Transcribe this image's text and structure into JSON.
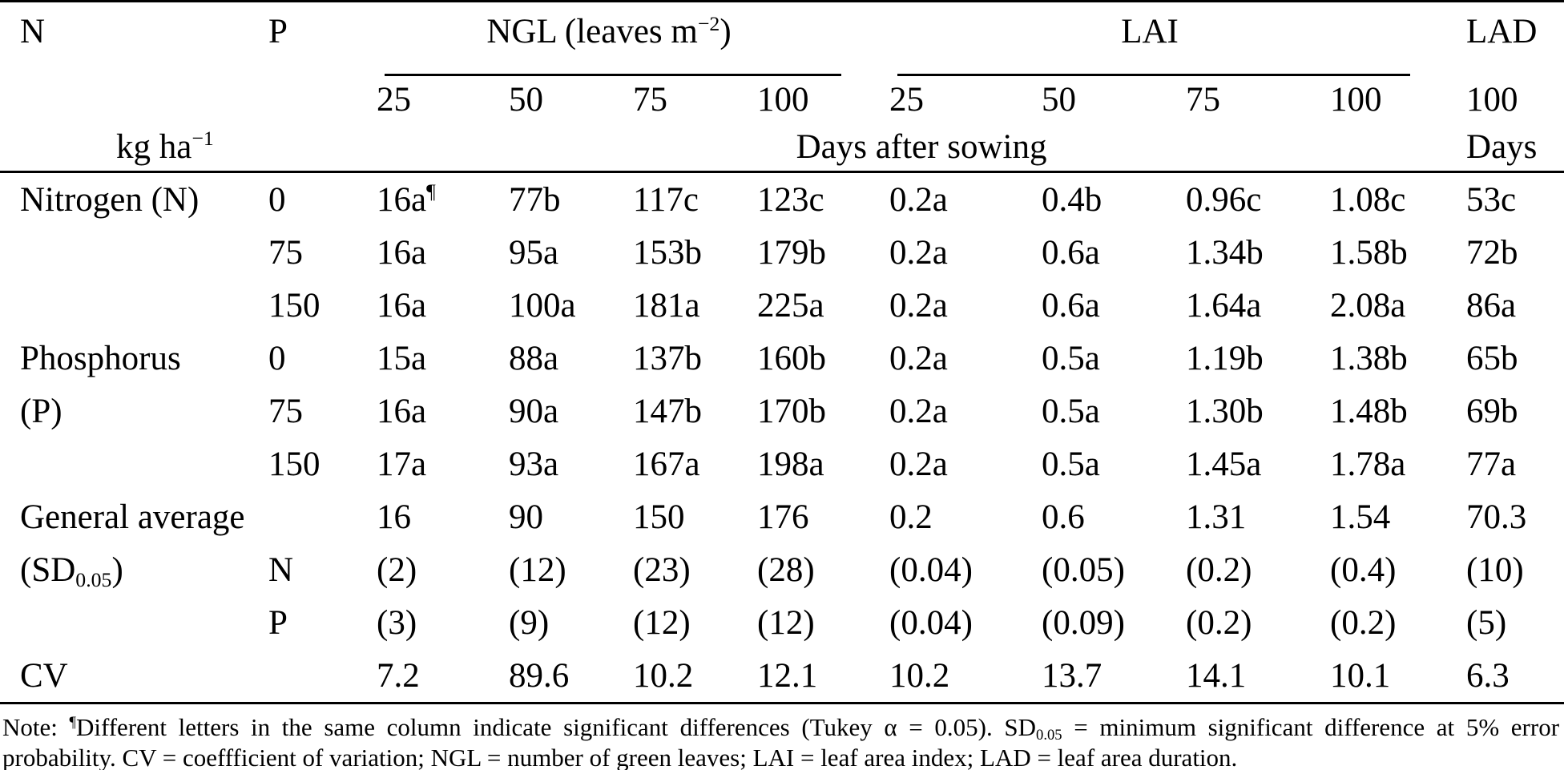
{
  "table": {
    "header": {
      "col_n": "N",
      "col_p": "P",
      "group_ngl": [
        {
          "t": "NGL (leaves m"
        },
        {
          "t": "−2",
          "s": "sup"
        },
        {
          "t": ")"
        }
      ],
      "group_lai": "LAI",
      "col_lad": "LAD",
      "ngl_days": [
        "25",
        "50",
        "75",
        "100"
      ],
      "lai_days": [
        "25",
        "50",
        "75",
        "100"
      ],
      "lad_day": "100",
      "unit_label": [
        {
          "t": "kg ha"
        },
        {
          "t": "−1",
          "s": "sup"
        }
      ],
      "days_after_sowing": "Days after sowing",
      "days_label": "Days"
    },
    "rows": [
      {
        "label": "Nitrogen (N)",
        "p": "0",
        "cells": [
          [
            {
              "t": "16a"
            },
            {
              "t": "¶",
              "s": "sup"
            }
          ],
          "77b",
          "117c",
          "123c",
          "0.2a",
          "0.4b",
          "0.96c",
          "1.08c",
          "53c"
        ]
      },
      {
        "label": "",
        "p": "75",
        "cells": [
          "16a",
          "95a",
          "153b",
          "179b",
          "0.2a",
          "0.6a",
          "1.34b",
          "1.58b",
          "72b"
        ]
      },
      {
        "label": "",
        "p": "150",
        "cells": [
          "16a",
          "100a",
          "181a",
          "225a",
          "0.2a",
          "0.6a",
          "1.64a",
          "2.08a",
          "86a"
        ]
      },
      {
        "label": "Phosphorus",
        "p": "0",
        "cells": [
          "15a",
          "88a",
          "137b",
          "160b",
          "0.2a",
          "0.5a",
          "1.19b",
          "1.38b",
          "65b"
        ]
      },
      {
        "label": "(P)",
        "p": "75",
        "cells": [
          "16a",
          "90a",
          "147b",
          "170b",
          "0.2a",
          "0.5a",
          "1.30b",
          "1.48b",
          "69b"
        ]
      },
      {
        "label": "",
        "p": "150",
        "cells": [
          "17a",
          "93a",
          "167a",
          "198a",
          "0.2a",
          "0.5a",
          "1.45a",
          "1.78a",
          "77a"
        ]
      },
      {
        "label": "General average",
        "p": "",
        "cells": [
          "16",
          "90",
          "150",
          "176",
          "0.2",
          "0.6",
          "1.31",
          "1.54",
          "70.3"
        ]
      },
      {
        "label": [
          {
            "t": "(SD"
          },
          {
            "t": "0.05",
            "s": "sub"
          },
          {
            "t": ")"
          }
        ],
        "p": "N",
        "cells": [
          "(2)",
          "(12)",
          "(23)",
          "(28)",
          "(0.04)",
          "(0.05)",
          "(0.2)",
          "(0.4)",
          "(10)"
        ]
      },
      {
        "label": "",
        "p": "P",
        "cells": [
          "(3)",
          "(9)",
          "(12)",
          "(12)",
          "(0.04)",
          "(0.09)",
          "(0.2)",
          "(0.2)",
          "(5)"
        ]
      },
      {
        "label": "CV",
        "p": "",
        "cells": [
          "7.2",
          "89.6",
          "10.2",
          "12.1",
          "10.2",
          "13.7",
          "14.1",
          "10.1",
          "6.3"
        ]
      }
    ],
    "note": [
      {
        "t": "Note: "
      },
      {
        "t": "¶",
        "s": "sup"
      },
      {
        "t": "Different letters in the same column indicate significant differences (Tukey α = 0.05). SD"
      },
      {
        "t": "0.05",
        "s": "sub"
      },
      {
        "t": " = minimum significant difference at 5% error probability. CV = coeffficient of variation; NGL = number of green leaves; LAI = leaf area index; LAD = leaf area duration."
      }
    ]
  }
}
